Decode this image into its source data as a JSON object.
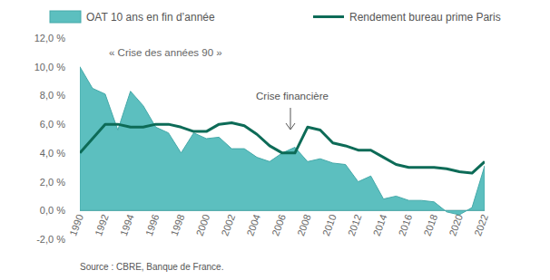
{
  "chart_data": {
    "type": "line",
    "annotations": [
      "« Crise des années 90 »",
      "Crise financière"
    ],
    "source": "Source : CBRE, Banque de France.",
    "x": [
      1990,
      1991,
      1992,
      1993,
      1994,
      1995,
      1996,
      1997,
      1998,
      1999,
      2000,
      2001,
      2002,
      2003,
      2004,
      2005,
      2006,
      2007,
      2008,
      2009,
      2010,
      2011,
      2012,
      2013,
      2014,
      2015,
      2016,
      2017,
      2018,
      2019,
      2020,
      2021,
      2022
    ],
    "series": [
      {
        "name": "OAT 10 ans en fin d’année",
        "type": "area",
        "color": "#5cbfbf",
        "values": [
          10.0,
          8.5,
          8.1,
          5.6,
          8.3,
          7.3,
          5.8,
          5.4,
          4.0,
          5.4,
          5.0,
          5.1,
          4.3,
          4.3,
          3.7,
          3.4,
          4.0,
          4.4,
          3.4,
          3.6,
          3.3,
          3.2,
          2.0,
          2.4,
          0.8,
          1.0,
          0.7,
          0.7,
          0.6,
          -0.1,
          -0.3,
          0.2,
          3.1
        ]
      },
      {
        "name": "Rendement bureau prime Paris",
        "type": "line",
        "color": "#0d6b57",
        "values": [
          4.0,
          5.0,
          6.0,
          6.0,
          5.8,
          5.8,
          6.0,
          6.0,
          5.8,
          5.5,
          5.5,
          6.0,
          6.1,
          5.9,
          5.3,
          4.5,
          4.0,
          4.0,
          5.8,
          5.6,
          4.7,
          4.5,
          4.2,
          4.2,
          3.7,
          3.2,
          3.0,
          3.0,
          3.0,
          2.9,
          2.7,
          2.6,
          3.4
        ]
      }
    ],
    "xlim": [
      1990,
      2022
    ],
    "xticks": [
      1990,
      1992,
      1994,
      1996,
      1998,
      2000,
      2002,
      2004,
      2006,
      2008,
      2010,
      2012,
      2014,
      2016,
      2018,
      2020,
      2022
    ],
    "ylim": [
      -2,
      12
    ],
    "yticks": [
      {
        "value": -2,
        "label": "-2,0 %"
      },
      {
        "value": 0,
        "label": "0,0 %"
      },
      {
        "value": 2,
        "label": "2,0 %"
      },
      {
        "value": 4,
        "label": "4,0 %"
      },
      {
        "value": 6,
        "label": "6,0 %"
      },
      {
        "value": 8,
        "label": "8,0 %"
      },
      {
        "value": 10,
        "label": "10,0 %"
      },
      {
        "value": 12,
        "label": "12,0 %"
      }
    ],
    "grid": false,
    "legend": "top"
  }
}
